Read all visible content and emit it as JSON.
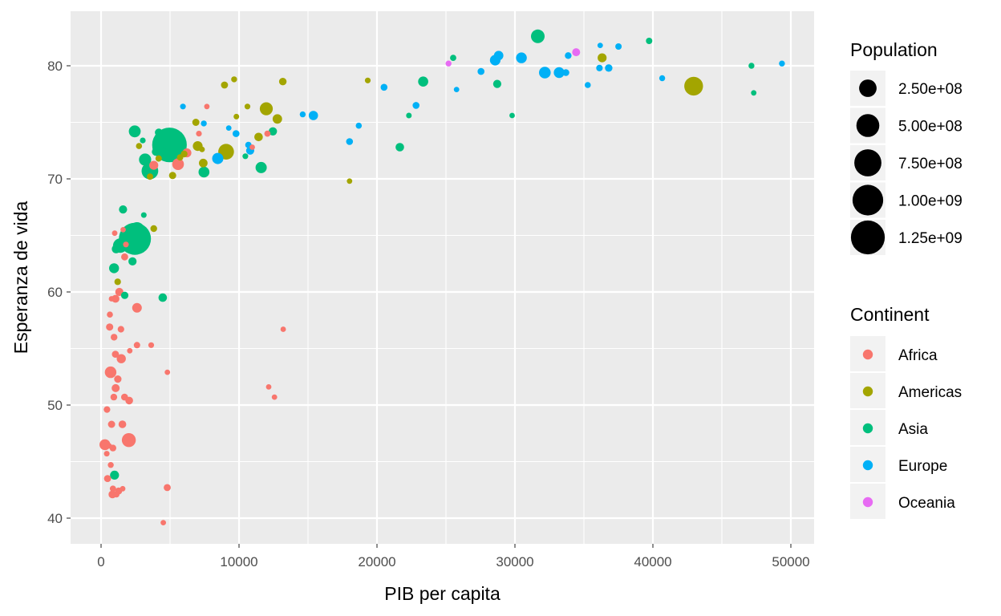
{
  "chart_data": {
    "type": "scatter",
    "xlabel": "PIB per capita",
    "ylabel": "Esperanza de vida",
    "xlim": [
      -2000,
      52000
    ],
    "ylim": [
      37.5,
      84.5
    ],
    "x_ticks": [
      0,
      10000,
      20000,
      30000,
      40000,
      50000
    ],
    "y_ticks": [
      40,
      50,
      60,
      70,
      80
    ],
    "grid": true,
    "legend_position": "right",
    "size_legend": {
      "title": "Population",
      "entries": [
        {
          "label": "2.50e+08",
          "value": 250000000
        },
        {
          "label": "5.00e+08",
          "value": 500000000
        },
        {
          "label": "7.50e+08",
          "value": 750000000
        },
        {
          "label": "1.00e+09",
          "value": 1000000000
        },
        {
          "label": "1.25e+09",
          "value": 1250000000
        }
      ]
    },
    "color_legend": {
      "title": "Continent",
      "entries": [
        {
          "label": "Africa",
          "color": "#F8766D"
        },
        {
          "label": "Americas",
          "color": "#A3A500"
        },
        {
          "label": "Asia",
          "color": "#00BF7D"
        },
        {
          "label": "Europe",
          "color": "#00B0F6"
        },
        {
          "label": "Oceania",
          "color": "#E76BF3"
        }
      ]
    },
    "series": [
      {
        "continent": "Africa",
        "points": [
          [
            6223,
            72.3,
            33000000
          ],
          [
            4797,
            42.7,
            12400000
          ],
          [
            1441,
            56.7,
            8100000
          ],
          [
            12570,
            50.7,
            1600000
          ],
          [
            1217,
            52.3,
            14300000
          ],
          [
            430,
            49.6,
            8400000
          ],
          [
            2042,
            50.4,
            17700000
          ],
          [
            706,
            44.7,
            4400000
          ],
          [
            1704,
            50.7,
            10200000
          ],
          [
            986,
            65.2,
            700000
          ],
          [
            278,
            46.5,
            64600000
          ],
          [
            3633,
            55.3,
            3800000
          ],
          [
            1544,
            48.3,
            18000000
          ],
          [
            2082,
            54.8,
            500000
          ],
          [
            5581,
            71.3,
            80300000
          ],
          [
            12154,
            51.6,
            600000
          ],
          [
            641,
            58.0,
            4900000
          ],
          [
            691,
            52.9,
            76500000
          ],
          [
            13206,
            56.7,
            1500000
          ],
          [
            753,
            59.4,
            1700000
          ],
          [
            1327,
            60.0,
            22900000
          ],
          [
            943,
            56.0,
            9900000
          ],
          [
            580,
            46.4,
            1500000
          ],
          [
            1463,
            54.1,
            35600000
          ],
          [
            1569,
            42.6,
            2000000
          ],
          [
            415,
            45.7,
            3200000
          ],
          [
            12057,
            74.0,
            6000000
          ],
          [
            1045,
            59.4,
            19200000
          ],
          [
            759,
            48.3,
            13300000
          ],
          [
            1043,
            54.5,
            12000000
          ],
          [
            1803,
            64.2,
            3300000
          ],
          [
            10957,
            72.8,
            1300000
          ],
          [
            3820,
            71.2,
            33800000
          ],
          [
            824,
            42.1,
            19900000
          ],
          [
            4811,
            52.9,
            2100000
          ],
          [
            620,
            56.9,
            12900000
          ],
          [
            2014,
            46.9,
            135000000
          ],
          [
            7670,
            76.4,
            800000
          ],
          [
            863,
            46.2,
            8900000
          ],
          [
            1598,
            65.5,
            200000
          ],
          [
            1712,
            63.1,
            12300000
          ],
          [
            863,
            42.6,
            6100000
          ],
          [
            926,
            50.7,
            9100000
          ],
          [
            4514,
            39.6,
            1100000
          ],
          [
            2602,
            58.6,
            42300000
          ],
          [
            2602,
            55.3,
            6900000
          ],
          [
            7093,
            74.0,
            3900000
          ],
          [
            1056,
            51.5,
            21800000
          ],
          [
            1271,
            42.4,
            11700000
          ],
          [
            470,
            43.5,
            12300000
          ],
          [
            1108,
            42.1,
            6500000
          ]
        ]
      },
      {
        "continent": "Americas",
        "points": [
          [
            12779,
            75.3,
            40300000
          ],
          [
            3822,
            65.6,
            9100000
          ],
          [
            9065,
            72.4,
            190000000
          ],
          [
            36319,
            80.7,
            33400000
          ],
          [
            13172,
            78.6,
            16300000
          ],
          [
            7007,
            72.9,
            44200000
          ],
          [
            9645,
            78.8,
            4100000
          ],
          [
            8948,
            78.3,
            11400000
          ],
          [
            6025,
            72.2,
            9300000
          ],
          [
            6873,
            75.0,
            13800000
          ],
          [
            5728,
            71.9,
            6900000
          ],
          [
            5186,
            70.3,
            12600000
          ],
          [
            1202,
            60.9,
            8500000
          ],
          [
            3548,
            70.2,
            7500000
          ],
          [
            7321,
            72.6,
            2800000
          ],
          [
            11978,
            76.2,
            108700000
          ],
          [
            2749,
            72.9,
            5700000
          ],
          [
            9809,
            75.5,
            3200000
          ],
          [
            4173,
            71.8,
            6700000
          ],
          [
            7409,
            71.4,
            28700000
          ],
          [
            19329,
            78.7,
            3900000
          ],
          [
            18009,
            69.8,
            1100000
          ],
          [
            42952,
            78.2,
            301100000
          ],
          [
            10611,
            76.4,
            3400000
          ],
          [
            11416,
            73.7,
            26100000
          ]
        ]
      },
      {
        "continent": "Asia",
        "points": [
          [
            975,
            43.8,
            31900000
          ],
          [
            29796,
            75.6,
            700000
          ],
          [
            1391,
            64.1,
            150400000
          ],
          [
            1714,
            59.7,
            14100000
          ],
          [
            4959,
            73.0,
            1318700000
          ],
          [
            39725,
            82.2,
            6900000
          ],
          [
            2452,
            64.7,
            1110400000
          ],
          [
            3541,
            70.7,
            223500000
          ],
          [
            11606,
            71.0,
            69500000
          ],
          [
            4471,
            59.5,
            27500000
          ],
          [
            25523,
            80.7,
            6400000
          ],
          [
            31656,
            82.6,
            127500000
          ],
          [
            4519,
            72.5,
            6100000
          ],
          [
            1593,
            67.3,
            23300000
          ],
          [
            23348,
            78.6,
            49000000
          ],
          [
            47307,
            77.6,
            2500000
          ],
          [
            10461,
            72.0,
            3900000
          ],
          [
            12452,
            74.2,
            24800000
          ],
          [
            3096,
            66.8,
            2900000
          ],
          [
            944,
            62.1,
            47800000
          ],
          [
            1091,
            63.8,
            28900000
          ],
          [
            22316,
            75.6,
            3200000
          ],
          [
            2606,
            65.5,
            169300000
          ],
          [
            3190,
            71.7,
            91100000
          ],
          [
            21655,
            72.8,
            27600000
          ],
          [
            47143,
            80.0,
            4600000
          ],
          [
            3970,
            72.4,
            20400000
          ],
          [
            4185,
            74.1,
            19300000
          ],
          [
            28718,
            78.4,
            23200000
          ],
          [
            7458,
            70.6,
            65100000
          ],
          [
            2441,
            74.2,
            85300000
          ],
          [
            3025,
            73.4,
            4000000
          ],
          [
            2281,
            62.7,
            22200000
          ]
        ]
      },
      {
        "continent": "Europe",
        "points": [
          [
            5937,
            76.4,
            3600000
          ],
          [
            36126,
            79.8,
            8200000
          ],
          [
            33693,
            79.4,
            10400000
          ],
          [
            7446,
            74.9,
            4600000
          ],
          [
            10681,
            73.0,
            7300000
          ],
          [
            14619,
            75.7,
            4500000
          ],
          [
            22833,
            76.5,
            10200000
          ],
          [
            35278,
            78.3,
            5500000
          ],
          [
            33207,
            79.4,
            5200000
          ],
          [
            30470,
            80.7,
            61100000
          ],
          [
            32170,
            79.4,
            82400000
          ],
          [
            27538,
            79.5,
            10700000
          ],
          [
            18009,
            73.3,
            10000000
          ],
          [
            36181,
            81.8,
            300000
          ],
          [
            40676,
            78.9,
            4100000
          ],
          [
            28570,
            80.5,
            58100000
          ],
          [
            9254,
            74.5,
            700000
          ],
          [
            36798,
            79.8,
            16600000
          ],
          [
            49357,
            80.2,
            4600000
          ],
          [
            15390,
            75.6,
            38500000
          ],
          [
            20510,
            78.1,
            10600000
          ],
          [
            10808,
            72.5,
            22300000
          ],
          [
            9787,
            74.0,
            10200000
          ],
          [
            18678,
            74.7,
            5400000
          ],
          [
            25768,
            77.9,
            2000000
          ],
          [
            28821,
            80.9,
            40400000
          ],
          [
            33860,
            80.9,
            9000000
          ],
          [
            37506,
            81.7,
            7600000
          ],
          [
            8458,
            71.8,
            71200000
          ],
          [
            33203,
            79.4,
            60800000
          ]
        ]
      },
      {
        "continent": "Oceania",
        "points": [
          [
            34435,
            81.2,
            20400000
          ],
          [
            25185,
            80.2,
            4100000
          ]
        ]
      }
    ]
  }
}
